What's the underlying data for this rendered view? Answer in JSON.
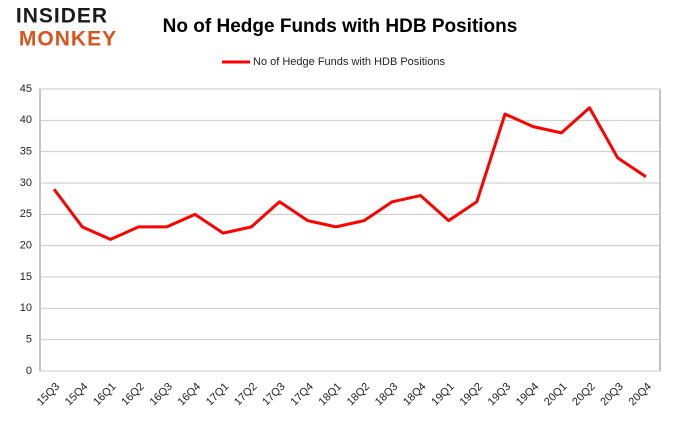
{
  "logo": {
    "top": "INSIDER",
    "bottom": "MONKEY"
  },
  "chart_data": {
    "type": "line",
    "title": "No of Hedge Funds with HDB Positions",
    "categories": [
      "15Q3",
      "15Q4",
      "16Q1",
      "16Q2",
      "16Q3",
      "16Q4",
      "17Q1",
      "17Q2",
      "17Q3",
      "17Q4",
      "18Q1",
      "18Q2",
      "18Q3",
      "18Q4",
      "19Q1",
      "19Q2",
      "19Q3",
      "19Q4",
      "20Q1",
      "20Q2",
      "20Q3",
      "20Q4"
    ],
    "series": [
      {
        "name": "No of Hedge Funds with HDB Positions",
        "color": "#ff0000",
        "values": [
          29,
          23,
          21,
          23,
          23,
          25,
          22,
          23,
          27,
          24,
          23,
          24,
          27,
          28,
          24,
          27,
          41,
          39,
          38,
          42,
          34,
          31
        ]
      }
    ],
    "ylim": [
      0,
      45
    ],
    "yticks": [
      0,
      5,
      10,
      15,
      20,
      25,
      30,
      35,
      40,
      45
    ],
    "grid": true,
    "legend": "top"
  }
}
